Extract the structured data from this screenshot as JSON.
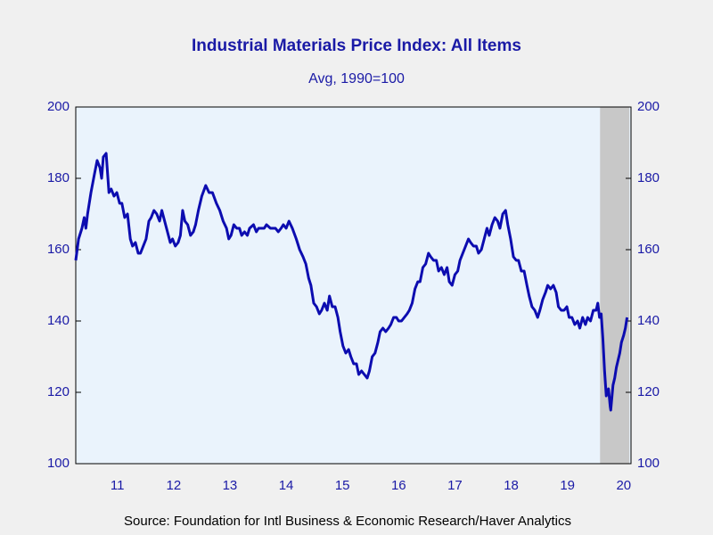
{
  "chart_data": {
    "type": "line",
    "title": "Industrial Materials Price Index: All Items",
    "subtitle": "Avg, 1990=100",
    "source": "Source:  Foundation for Intl Business & Economic Research/Haver Analytics",
    "xlim": [
      2010.76,
      2020.63
    ],
    "xticks": [
      {
        "value": 2011.5,
        "label": "11"
      },
      {
        "value": 2012.5,
        "label": "12"
      },
      {
        "value": 2013.5,
        "label": "13"
      },
      {
        "value": 2014.5,
        "label": "14"
      },
      {
        "value": 2015.5,
        "label": "15"
      },
      {
        "value": 2016.5,
        "label": "16"
      },
      {
        "value": 2017.5,
        "label": "17"
      },
      {
        "value": 2018.5,
        "label": "18"
      },
      {
        "value": 2019.5,
        "label": "19"
      },
      {
        "value": 2020.5,
        "label": "20"
      }
    ],
    "ylim": [
      100,
      200
    ],
    "yticks": [
      100,
      120,
      140,
      160,
      180,
      200
    ],
    "y2lim": [
      100,
      200
    ],
    "y2ticks": [
      100,
      120,
      140,
      160,
      180,
      200
    ],
    "shaded": [
      {
        "start": 2020.08,
        "end": 2020.6,
        "color": "#c8c8c8"
      }
    ],
    "plot_background": "#eaf3fc",
    "grid": false,
    "x": [
      2010.76,
      2010.81,
      2010.87,
      2010.91,
      2010.94,
      2010.97,
      2011.03,
      2011.09,
      2011.14,
      2011.19,
      2011.22,
      2011.25,
      2011.3,
      2011.35,
      2011.39,
      2011.44,
      2011.49,
      2011.54,
      2011.58,
      2011.63,
      2011.68,
      2011.73,
      2011.77,
      2011.82,
      2011.87,
      2011.91,
      2011.96,
      2012.01,
      2012.06,
      2012.1,
      2012.15,
      2012.2,
      2012.25,
      2012.29,
      2012.34,
      2012.39,
      2012.44,
      2012.48,
      2012.53,
      2012.58,
      2012.62,
      2012.66,
      2012.7,
      2012.75,
      2012.8,
      2012.85,
      2012.89,
      2012.94,
      2013.0,
      2013.07,
      2013.13,
      2013.19,
      2013.26,
      2013.32,
      2013.38,
      2013.44,
      2013.48,
      2013.52,
      2013.57,
      2013.62,
      2013.67,
      2013.71,
      2013.76,
      2013.81,
      2013.85,
      2013.92,
      2013.97,
      2014.01,
      2014.06,
      2014.11,
      2014.15,
      2014.22,
      2014.26,
      2014.31,
      2014.36,
      2014.41,
      2014.45,
      2014.5,
      2014.55,
      2014.61,
      2014.68,
      2014.74,
      2014.8,
      2014.85,
      2014.9,
      2014.94,
      2014.99,
      2015.04,
      2015.09,
      2015.13,
      2015.18,
      2015.23,
      2015.27,
      2015.32,
      2015.37,
      2015.42,
      2015.46,
      2015.51,
      2015.56,
      2015.61,
      2015.65,
      2015.7,
      2015.75,
      2015.79,
      2015.84,
      2015.89,
      2015.94,
      2015.98,
      2016.03,
      2016.08,
      2016.13,
      2016.17,
      2016.22,
      2016.27,
      2016.32,
      2016.36,
      2016.41,
      2016.46,
      2016.5,
      2016.55,
      2016.6,
      2016.65,
      2016.69,
      2016.74,
      2016.79,
      2016.84,
      2016.88,
      2016.93,
      2016.98,
      2017.03,
      2017.07,
      2017.12,
      2017.17,
      2017.21,
      2017.26,
      2017.31,
      2017.36,
      2017.4,
      2017.45,
      2017.5,
      2017.55,
      2017.59,
      2017.64,
      2017.69,
      2017.74,
      2017.78,
      2017.83,
      2017.88,
      2017.92,
      2017.97,
      2018.02,
      2018.07,
      2018.11,
      2018.16,
      2018.21,
      2018.26,
      2018.3,
      2018.35,
      2018.4,
      2018.44,
      2018.49,
      2018.54,
      2018.59,
      2018.63,
      2018.68,
      2018.73,
      2018.78,
      2018.82,
      2018.87,
      2018.92,
      2018.97,
      2019.01,
      2019.06,
      2019.11,
      2019.15,
      2019.2,
      2019.25,
      2019.3,
      2019.34,
      2019.39,
      2019.44,
      2019.49,
      2019.53,
      2019.58,
      2019.63,
      2019.68,
      2019.72,
      2019.77,
      2019.82,
      2019.86,
      2019.91,
      2019.96,
      2020.01,
      2020.04,
      2020.07,
      2020.1,
      2020.13,
      2020.16,
      2020.19,
      2020.23,
      2020.26,
      2020.27,
      2020.31,
      2020.34,
      2020.37,
      2020.4,
      2020.43,
      2020.46,
      2020.5,
      2020.53,
      2020.56
    ],
    "series": [
      {
        "name": "Industrial Materials Price Index: All Items",
        "color": "#0c0cb0",
        "values": [
          157,
          163,
          166,
          169,
          166,
          170,
          176,
          181,
          185,
          183,
          180,
          186,
          187,
          176,
          177,
          175,
          176,
          173,
          173,
          169,
          170,
          163,
          161,
          162,
          159,
          159,
          161,
          163,
          168,
          169,
          171,
          170,
          168,
          171,
          168,
          165,
          162,
          163,
          161,
          162,
          164,
          171,
          168,
          167,
          164,
          165,
          167,
          171,
          175,
          178,
          176,
          176,
          173,
          171,
          168,
          166,
          163,
          164,
          167,
          166,
          166,
          164,
          165,
          164,
          166,
          167,
          165,
          166,
          166,
          166,
          167,
          166,
          166,
          166,
          165,
          166,
          167,
          166,
          168,
          166,
          163,
          160,
          158,
          156,
          152,
          150,
          145,
          144,
          142,
          143,
          145,
          143,
          147,
          144,
          144,
          141,
          137,
          133,
          131,
          132,
          130,
          128,
          128,
          125,
          126,
          125,
          124,
          126,
          130,
          131,
          134,
          137,
          138,
          137,
          138,
          139,
          141,
          141,
          140,
          140,
          141,
          142,
          143,
          145,
          149,
          151,
          151,
          155,
          156,
          159,
          158,
          157,
          157,
          154,
          155,
          153,
          155,
          151,
          150,
          153,
          154,
          157,
          159,
          161,
          163,
          162,
          161,
          161,
          159,
          160,
          163,
          166,
          164,
          167,
          169,
          168,
          166,
          170,
          171,
          167,
          163,
          158,
          157,
          157,
          154,
          154,
          150,
          147,
          144,
          143,
          141,
          143,
          146,
          148,
          150,
          149,
          150,
          148,
          144,
          143,
          143,
          144,
          141,
          141,
          139,
          140,
          138,
          141,
          139,
          141,
          140,
          143,
          143,
          145,
          141,
          142,
          135,
          126,
          119,
          121,
          116,
          115,
          122,
          124,
          127,
          129,
          131,
          134,
          136,
          138,
          141
        ]
      }
    ]
  }
}
